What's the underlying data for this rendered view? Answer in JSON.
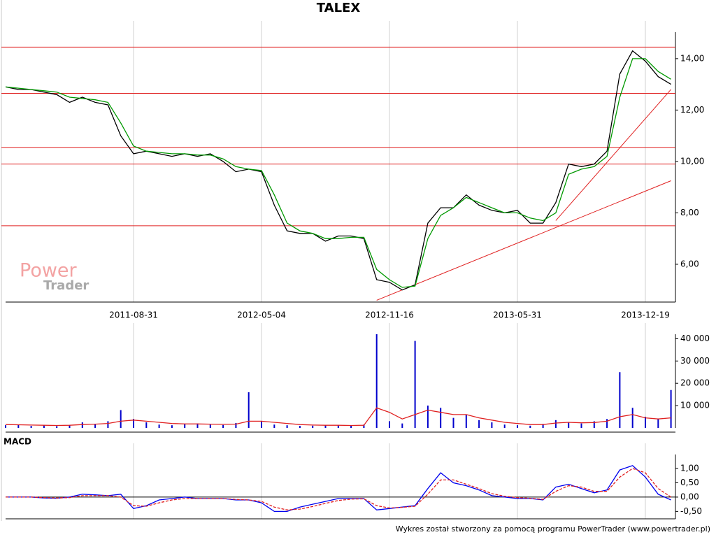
{
  "chart_data": [
    {
      "type": "line",
      "title": "TALEX",
      "categories": [
        null,
        null,
        null,
        null,
        null,
        null,
        null,
        null,
        null,
        null,
        "2011-08-31",
        null,
        null,
        null,
        null,
        null,
        null,
        null,
        null,
        null,
        "2012-05-04",
        null,
        null,
        null,
        null,
        null,
        null,
        null,
        null,
        null,
        "2012-11-16",
        null,
        null,
        null,
        null,
        null,
        null,
        null,
        null,
        null,
        "2013-05-31",
        null,
        null,
        null,
        null,
        null,
        null,
        null,
        null,
        null,
        "2013-12-19",
        null,
        null
      ],
      "series": [
        {
          "type": "line",
          "color": "#000000",
          "values": [
            12.9,
            12.8,
            12.8,
            12.7,
            12.6,
            12.3,
            12.5,
            12.3,
            12.2,
            11.0,
            10.3,
            10.4,
            10.3,
            10.2,
            10.3,
            10.2,
            10.3,
            10.0,
            9.6,
            9.7,
            9.6,
            8.3,
            7.3,
            7.2,
            7.2,
            6.9,
            7.1,
            7.1,
            7.0,
            5.4,
            5.3,
            5.0,
            5.2,
            7.6,
            8.2,
            8.2,
            8.7,
            8.3,
            8.1,
            8.0,
            8.1,
            7.6,
            7.6,
            8.4,
            9.9,
            9.8,
            9.9,
            10.4,
            13.4,
            14.3,
            13.9,
            13.3,
            13.0
          ]
        },
        {
          "type": "line",
          "color": "#009900",
          "values": [
            12.9,
            12.85,
            12.8,
            12.75,
            12.7,
            12.5,
            12.45,
            12.4,
            12.3,
            11.5,
            10.6,
            10.4,
            10.35,
            10.3,
            10.3,
            10.25,
            10.25,
            10.1,
            9.8,
            9.7,
            9.65,
            8.7,
            7.6,
            7.3,
            7.2,
            7.0,
            7.0,
            7.05,
            7.05,
            5.8,
            5.4,
            5.1,
            5.15,
            7.0,
            7.9,
            8.2,
            8.6,
            8.4,
            8.2,
            8.0,
            8.0,
            7.8,
            7.7,
            8.0,
            9.5,
            9.7,
            9.8,
            10.2,
            12.5,
            14.0,
            14.0,
            13.5,
            13.2
          ]
        }
      ],
      "levels": [
        14.45,
        12.65,
        10.55,
        9.9,
        7.5
      ],
      "trendlines": [
        {
          "x": [
            29,
            52
          ],
          "values": [
            4.6,
            9.25
          ]
        },
        {
          "x": [
            43,
            52
          ],
          "values": [
            7.7,
            12.8
          ]
        }
      ],
      "level_color": "#e02020",
      "ylim": [
        4.53,
        15.03
      ],
      "yticks": [
        {
          "value": 6,
          "label": "6,00"
        },
        {
          "value": 8,
          "label": "8,00"
        },
        {
          "value": 10,
          "label": "10,00"
        },
        {
          "value": 12,
          "label": "12,00"
        },
        {
          "value": 14,
          "label": "14,00"
        }
      ]
    },
    {
      "type": "bar",
      "series": [
        {
          "type": "bar",
          "color": "#0000cc",
          "values": [
            1200,
            1500,
            900,
            1100,
            800,
            1300,
            2500,
            1800,
            3000,
            8000,
            4000,
            2500,
            1500,
            1200,
            1800,
            2000,
            1500,
            1300,
            2200,
            16000,
            2800,
            1500,
            1200,
            900,
            1000,
            1300,
            1100,
            1000,
            1500,
            42000,
            3000,
            2000,
            39000,
            10000,
            9000,
            4500,
            6000,
            3500,
            2500,
            1500,
            1200,
            1000,
            1800,
            3500,
            2500,
            2000,
            3000,
            4000,
            25000,
            9000,
            5000,
            4000,
            17000
          ]
        },
        {
          "type": "line",
          "color": "#e02020",
          "values": [
            1500,
            1400,
            1300,
            1200,
            1100,
            1200,
            1500,
            1700,
            2000,
            3000,
            3500,
            3000,
            2500,
            2000,
            1800,
            1800,
            1700,
            1600,
            1700,
            3000,
            3000,
            2500,
            2000,
            1500,
            1300,
            1200,
            1200,
            1100,
            1200,
            9000,
            7000,
            4000,
            6000,
            8000,
            7000,
            6000,
            6000,
            4500,
            3500,
            2500,
            2000,
            1500,
            1500,
            2200,
            2500,
            2300,
            2400,
            3000,
            5000,
            6000,
            4500,
            4000,
            4500
          ]
        }
      ],
      "ylim": [
        0,
        42000
      ],
      "yticks": [
        {
          "value": 10000,
          "label": "10 000"
        },
        {
          "value": 20000,
          "label": "20 000"
        },
        {
          "value": 30000,
          "label": "30 000"
        },
        {
          "value": 40000,
          "label": "40 000"
        }
      ]
    },
    {
      "type": "line",
      "title": "MACD",
      "series": [
        {
          "type": "line",
          "color": "#0000ee",
          "values": [
            0,
            0,
            0,
            -0.03,
            -0.04,
            0,
            0.1,
            0.08,
            0.05,
            0.1,
            -0.4,
            -0.3,
            -0.1,
            -0.05,
            0,
            -0.05,
            -0.05,
            -0.05,
            -0.1,
            -0.1,
            -0.2,
            -0.5,
            -0.5,
            -0.35,
            -0.25,
            -0.15,
            -0.05,
            -0.05,
            -0.05,
            -0.45,
            -0.4,
            -0.35,
            -0.3,
            0.3,
            0.85,
            0.5,
            0.4,
            0.25,
            0.05,
            0.0,
            -0.05,
            -0.05,
            -0.1,
            0.35,
            0.45,
            0.3,
            0.15,
            0.25,
            0.95,
            1.1,
            0.7,
            0.1,
            -0.1
          ]
        },
        {
          "type": "line",
          "color": "#e02020",
          "dashed": true,
          "values": [
            0,
            0,
            0,
            -0.02,
            -0.03,
            -0.02,
            0.05,
            0.05,
            0.05,
            0,
            -0.3,
            -0.32,
            -0.2,
            -0.1,
            -0.05,
            -0.05,
            -0.05,
            -0.05,
            -0.08,
            -0.1,
            -0.15,
            -0.35,
            -0.45,
            -0.42,
            -0.33,
            -0.22,
            -0.12,
            -0.07,
            -0.06,
            -0.3,
            -0.38,
            -0.36,
            -0.32,
            0.1,
            0.6,
            0.6,
            0.45,
            0.3,
            0.12,
            0.03,
            -0.02,
            -0.04,
            -0.08,
            0.2,
            0.4,
            0.35,
            0.2,
            0.2,
            0.7,
            1.0,
            0.85,
            0.3,
            0
          ]
        }
      ],
      "ylim": [
        -0.76,
        1.49
      ],
      "yticks": [
        {
          "value": -0.5,
          "label": "-0,50"
        },
        {
          "value": 0,
          "label": "0,00"
        },
        {
          "value": 0.5,
          "label": "0,50"
        },
        {
          "value": 1,
          "label": "1,00"
        }
      ]
    }
  ],
  "logo": {
    "top": "Power",
    "bottom": "Trader"
  },
  "footer": "Wykres został stworzony za pomocą programu PowerTrader (www.powertrader.pl)"
}
